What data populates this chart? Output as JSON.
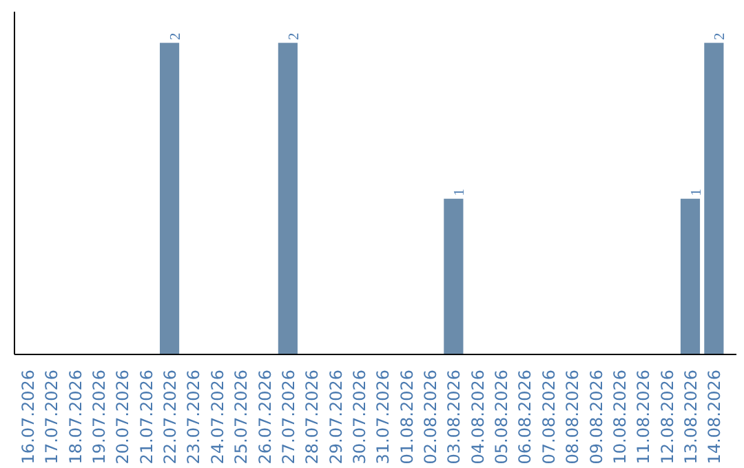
{
  "chart_data": {
    "type": "bar",
    "categories": [
      "16.07.2026",
      "17.07.2026",
      "18.07.2026",
      "19.07.2026",
      "20.07.2026",
      "21.07.2026",
      "22.07.2026",
      "23.07.2026",
      "24.07.2026",
      "25.07.2026",
      "26.07.2026",
      "27.07.2026",
      "28.07.2026",
      "29.07.2026",
      "30.07.2026",
      "31.07.2026",
      "01.08.2026",
      "02.08.2026",
      "03.08.2026",
      "04.08.2026",
      "05.08.2026",
      "06.08.2026",
      "07.08.2026",
      "08.08.2026",
      "09.08.2026",
      "10.08.2026",
      "11.08.2026",
      "12.08.2026",
      "13.08.2026",
      "14.08.2026"
    ],
    "values": [
      0,
      0,
      0,
      0,
      0,
      0,
      2,
      0,
      0,
      0,
      0,
      2,
      0,
      0,
      0,
      0,
      0,
      0,
      1,
      0,
      0,
      0,
      0,
      0,
      0,
      0,
      0,
      0,
      1,
      2
    ],
    "value_labels": [
      null,
      null,
      null,
      null,
      null,
      null,
      "2",
      null,
      null,
      null,
      null,
      "2",
      null,
      null,
      null,
      null,
      null,
      null,
      "1",
      null,
      null,
      null,
      null,
      null,
      null,
      null,
      null,
      null,
      "1",
      "2"
    ],
    "color": "#6b8cab"
  }
}
